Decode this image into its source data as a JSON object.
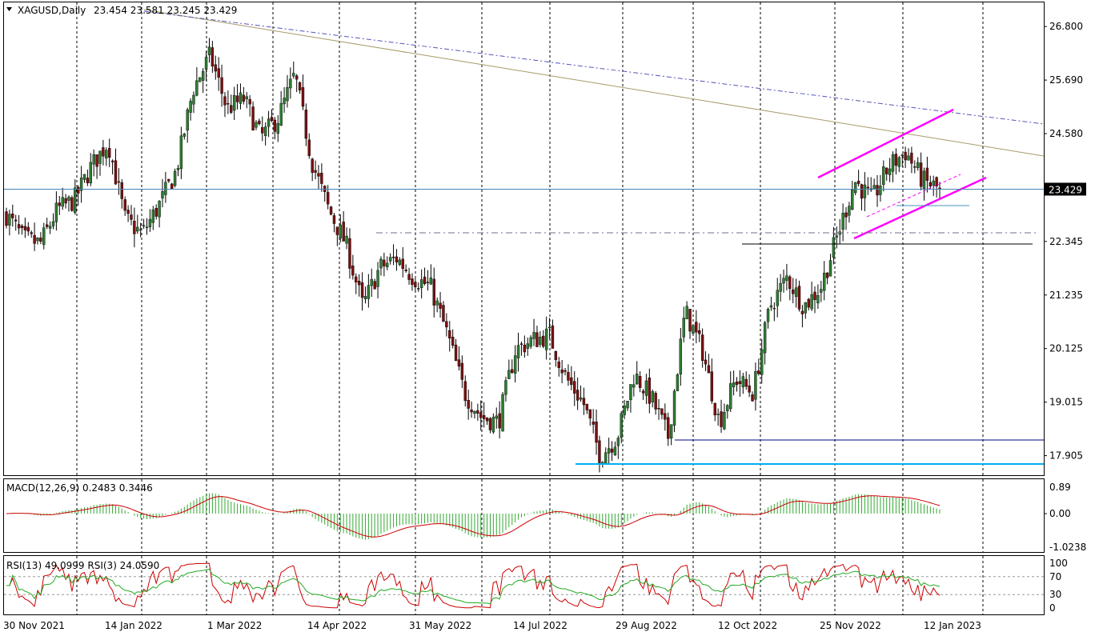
{
  "symbol_header": {
    "symbol": "XAGUSD,Daily",
    "ohlc": "23.454 23.581 23.245 23.429"
  },
  "price_axis": {
    "ticks": [
      "26.800",
      "25.690",
      "24.580",
      "23.429",
      "22.345",
      "21.235",
      "20.125",
      "19.015",
      "17.905"
    ],
    "tick_values": [
      26.8,
      25.69,
      24.58,
      22.345,
      21.235,
      20.125,
      19.015,
      17.905
    ],
    "current_price_label": "23.429",
    "current_price": 23.429,
    "range": [
      17.5,
      27.3
    ]
  },
  "time_axis": {
    "labels": [
      "30 Nov 2021",
      "14 Jan 2022",
      "1 Mar 2022",
      "14 Apr 2022",
      "31 May 2022",
      "14 Jul 2022",
      "29 Aug 2022",
      "12 Oct 2022",
      "25 Nov 2022",
      "12 Jan 2023"
    ]
  },
  "macd_panel": {
    "title": "MACD(12,26,9) 0.2483 0.3446",
    "ticks": [
      "0.89",
      "0.00",
      "-1.0238"
    ],
    "tick_values": [
      0.89,
      0.0,
      -1.0238
    ]
  },
  "rsi_panel": {
    "title": "RSI(13) 49.0999  RSI(3) 24.0590",
    "ticks": [
      "100",
      "70",
      "30",
      "0"
    ],
    "tick_values": [
      100,
      70,
      30,
      0
    ]
  },
  "colors": {
    "bull_candle": "#2e7d32",
    "bear_candle": "#7b1010",
    "macd_hist": "#33aa33",
    "signal_line": "#cc0000",
    "rsi13": "#22aa22",
    "rsi3": "#cc0000",
    "channel": "#ff00ff",
    "support_blue": "#00008b",
    "support_cyan": "#00b0f0",
    "resistance_black": "#000000",
    "trend_tan": "#a89a6a",
    "trend_dash": "#5555bb",
    "current_line": "#4682b4"
  },
  "chart_data": {
    "type": "candlestick",
    "title": "XAGUSD,Daily",
    "x": [
      "30 Nov 2021",
      "14 Jan 2022",
      "1 Mar 2022",
      "14 Apr 2022",
      "31 May 2022",
      "14 Jul 2022",
      "29 Aug 2022",
      "12 Oct 2022",
      "25 Nov 2022",
      "12 Jan 2023"
    ],
    "close_path": [
      [
        "30 Nov 2021",
        22.9
      ],
      [
        "Dec 2021",
        22.4
      ],
      [
        "Dec 2021",
        22.3
      ],
      [
        "Dec 2021",
        23.0
      ],
      [
        "Jan 2022",
        23.2
      ],
      [
        "14 Jan 2022",
        23.9
      ],
      [
        "Jan 2022",
        24.4
      ],
      [
        "Jan 2022",
        22.8
      ],
      [
        "Feb 2022",
        22.5
      ],
      [
        "Feb 2022",
        23.1
      ],
      [
        "Feb 2022",
        23.8
      ],
      [
        "1 Mar 2022",
        25.5
      ],
      [
        "Mar 2022",
        26.2
      ],
      [
        "Mar 2022",
        25.1
      ],
      [
        "Mar 2022",
        25.3
      ],
      [
        "Apr 2022",
        24.5
      ],
      [
        "Apr 2022",
        24.9
      ],
      [
        "14 Apr 2022",
        25.8
      ],
      [
        "Apr 2022",
        24.0
      ],
      [
        "Apr 2022",
        23.0
      ],
      [
        "May 2022",
        22.3
      ],
      [
        "May 2022",
        21.0
      ],
      [
        "May 2022",
        21.8
      ],
      [
        "31 May 2022",
        22.0
      ],
      [
        "Jun 2022",
        21.6
      ],
      [
        "Jun 2022",
        21.4
      ],
      [
        "Jun 2022",
        20.4
      ],
      [
        "Jul 2022",
        19.2
      ],
      [
        "Jul 2022",
        18.7
      ],
      [
        "14 Jul 2022",
        18.6
      ],
      [
        "Jul 2022",
        20.1
      ],
      [
        "Aug 2022",
        20.3
      ],
      [
        "Aug 2022",
        20.4
      ],
      [
        "Aug 2022",
        19.5
      ],
      [
        "Aug 2022",
        19.0
      ],
      [
        "29 Aug 2022",
        17.9
      ],
      [
        "Sep 2022",
        18.3
      ],
      [
        "Sep 2022",
        19.6
      ],
      [
        "Sep 2022",
        19.1
      ],
      [
        "Sep 2022",
        18.3
      ],
      [
        "Oct 2022",
        20.9
      ],
      [
        "Oct 2022",
        20.1
      ],
      [
        "12 Oct 2022",
        18.6
      ],
      [
        "Oct 2022",
        19.5
      ],
      [
        "Oct 2022",
        19.2
      ],
      [
        "Nov 2022",
        21.0
      ],
      [
        "Nov 2022",
        21.6
      ],
      [
        "Nov 2022",
        21.0
      ],
      [
        "25 Nov 2022",
        21.4
      ],
      [
        "Dec 2022",
        22.5
      ],
      [
        "Dec 2022",
        23.6
      ],
      [
        "Dec 2022",
        23.2
      ],
      [
        "Dec 2022",
        23.9
      ],
      [
        "Jan 2023",
        24.2
      ],
      [
        "12 Jan 2023",
        23.6
      ],
      [
        "Jan 2023",
        23.429
      ]
    ],
    "last": {
      "open": 23.454,
      "high": 23.581,
      "low": 23.245,
      "close": 23.429
    },
    "ylim": [
      17.5,
      27.3
    ],
    "grid": true,
    "indicators": [
      "MACD(12,26,9)",
      "RSI(13)",
      "RSI(3)"
    ]
  }
}
